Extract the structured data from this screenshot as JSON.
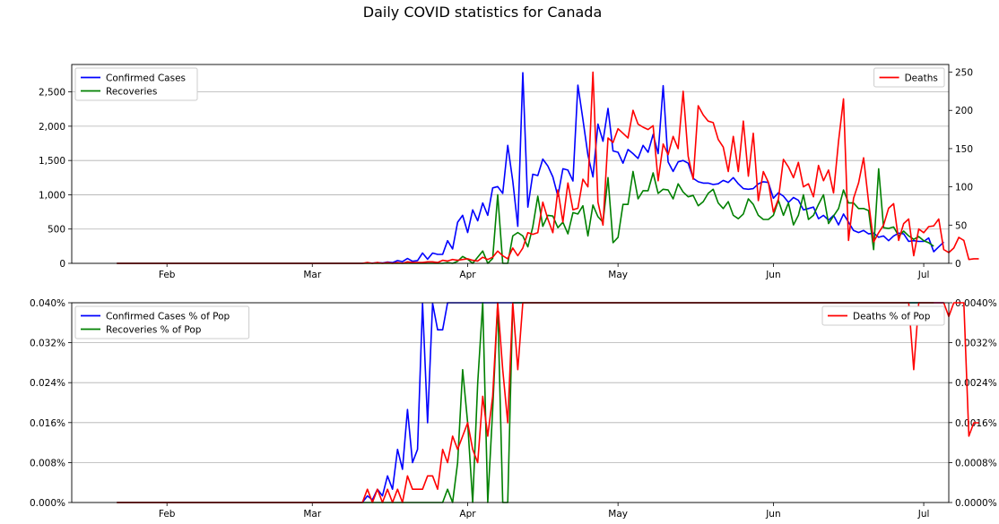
{
  "title": "Daily COVID statistics for Canada",
  "chart_data": [
    {
      "type": "line",
      "name": "daily-counts",
      "dates_start": "2020-01-22",
      "xlim": [
        "2020-01-13",
        "2020-07-06"
      ],
      "x_ticks": [
        {
          "date": "2020-02-01",
          "label": "Feb"
        },
        {
          "date": "2020-03-01",
          "label": "Mar"
        },
        {
          "date": "2020-04-01",
          "label": "Apr"
        },
        {
          "date": "2020-05-01",
          "label": "May"
        },
        {
          "date": "2020-06-01",
          "label": "Jun"
        },
        {
          "date": "2020-07-01",
          "label": "Jul"
        }
      ],
      "y_left": {
        "lim": [
          0,
          2900
        ],
        "ticks": [
          0,
          500,
          1000,
          1500,
          2000,
          2500
        ],
        "tick_labels": [
          "0",
          "500",
          "1,000",
          "1,500",
          "2,000",
          "2,500"
        ]
      },
      "y_right": {
        "lim": [
          0,
          260
        ],
        "ticks": [
          0,
          50,
          100,
          150,
          200,
          250
        ],
        "tick_labels": [
          "0",
          "50",
          "100",
          "150",
          "200",
          "250"
        ]
      },
      "grid": true,
      "legend_left": {
        "position": "upper-left",
        "entries": [
          "Confirmed Cases",
          "Recoveries"
        ]
      },
      "legend_right": {
        "position": "upper-right",
        "entries": [
          "Deaths"
        ]
      },
      "series": [
        {
          "name": "Confirmed Cases",
          "axis": "left",
          "color": "#0000ff",
          "values": [
            0,
            0,
            0,
            0,
            0,
            0,
            0,
            0,
            0,
            0,
            0,
            0,
            0,
            0,
            0,
            0,
            0,
            0,
            0,
            0,
            0,
            0,
            0,
            0,
            0,
            0,
            0,
            0,
            0,
            0,
            0,
            0,
            0,
            0,
            0,
            0,
            0,
            0,
            0,
            0,
            0,
            0,
            0,
            0,
            0,
            0,
            0,
            0,
            0,
            0,
            5,
            2,
            10,
            5,
            20,
            10,
            40,
            25,
            70,
            30,
            40,
            150,
            60,
            150,
            130,
            130,
            330,
            210,
            600,
            700,
            450,
            780,
            620,
            880,
            700,
            1100,
            1120,
            1020,
            1720,
            1200,
            540,
            2780,
            820,
            1300,
            1280,
            1520,
            1420,
            1260,
            980,
            1380,
            1360,
            1200,
            2600,
            2100,
            1580,
            1260,
            2030,
            1780,
            2260,
            1640,
            1620,
            1460,
            1660,
            1600,
            1530,
            1720,
            1620,
            1880,
            1600,
            2590,
            1480,
            1340,
            1480,
            1500,
            1460,
            1240,
            1190,
            1170,
            1170,
            1150,
            1160,
            1210,
            1180,
            1250,
            1160,
            1090,
            1080,
            1090,
            1160,
            1190,
            1180,
            950,
            1030,
            980,
            890,
            960,
            920,
            780,
            800,
            820,
            650,
            700,
            630,
            700,
            560,
            720,
            600,
            480,
            450,
            480,
            430,
            440,
            380,
            400,
            330,
            400,
            440,
            430,
            320,
            330,
            320,
            320,
            370,
            170,
            240,
            310
          ]
        },
        {
          "name": "Recoveries",
          "axis": "left",
          "color": "#008000",
          "values": [
            0,
            0,
            0,
            0,
            0,
            0,
            0,
            0,
            0,
            0,
            0,
            0,
            0,
            0,
            0,
            0,
            0,
            0,
            0,
            0,
            0,
            0,
            0,
            0,
            0,
            0,
            0,
            0,
            0,
            0,
            0,
            0,
            0,
            0,
            0,
            0,
            0,
            0,
            0,
            0,
            0,
            0,
            0,
            0,
            0,
            0,
            0,
            0,
            0,
            0,
            0,
            0,
            0,
            0,
            0,
            0,
            0,
            0,
            0,
            0,
            0,
            0,
            0,
            0,
            0,
            0,
            10,
            0,
            30,
            100,
            60,
            0,
            90,
            180,
            0,
            70,
            1000,
            0,
            0,
            400,
            450,
            400,
            240,
            530,
            980,
            540,
            700,
            690,
            520,
            600,
            430,
            740,
            720,
            840,
            400,
            850,
            680,
            600,
            1250,
            300,
            380,
            860,
            860,
            1340,
            940,
            1060,
            1060,
            1320,
            1020,
            1080,
            1070,
            940,
            1160,
            1040,
            970,
            990,
            840,
            900,
            1020,
            1080,
            880,
            800,
            900,
            700,
            650,
            720,
            940,
            860,
            700,
            640,
            640,
            700,
            920,
            700,
            880,
            560,
            700,
            1000,
            640,
            700,
            860,
            1000,
            580,
            690,
            800,
            1070,
            880,
            880,
            800,
            800,
            770,
            200,
            1380,
            520,
            510,
            530,
            400,
            470,
            400,
            350,
            390,
            330,
            300,
            250
          ]
        },
        {
          "name": "Deaths",
          "axis": "right",
          "color": "#ff0000",
          "values": [
            0,
            0,
            0,
            0,
            0,
            0,
            0,
            0,
            0,
            0,
            0,
            0,
            0,
            0,
            0,
            0,
            0,
            0,
            0,
            0,
            0,
            0,
            0,
            0,
            0,
            0,
            0,
            0,
            0,
            0,
            0,
            0,
            0,
            0,
            0,
            0,
            0,
            0,
            0,
            0,
            0,
            0,
            0,
            0,
            0,
            0,
            0,
            0,
            0,
            0,
            1,
            0,
            1,
            0,
            1,
            0,
            1,
            0,
            2,
            1,
            1,
            1,
            2,
            2,
            1,
            4,
            3,
            5,
            4,
            5,
            6,
            4,
            3,
            8,
            5,
            8,
            16,
            10,
            6,
            20,
            10,
            20,
            40,
            38,
            40,
            80,
            58,
            40,
            96,
            54,
            105,
            70,
            72,
            110,
            100,
            250,
            80,
            50,
            164,
            158,
            176,
            170,
            164,
            200,
            182,
            178,
            175,
            180,
            108,
            156,
            142,
            166,
            150,
            225,
            140,
            110,
            206,
            194,
            186,
            184,
            162,
            152,
            120,
            166,
            120,
            186,
            114,
            170,
            82,
            120,
            106,
            67,
            84,
            136,
            126,
            112,
            132,
            100,
            104,
            87,
            128,
            108,
            122,
            92,
            160,
            215,
            30,
            85,
            105,
            138,
            80,
            28,
            40,
            50,
            72,
            78,
            30,
            52,
            58,
            10,
            45,
            40,
            48,
            49,
            58,
            18,
            14,
            20,
            34,
            30,
            5,
            6,
            6
          ]
        }
      ]
    },
    {
      "type": "line",
      "name": "percent-of-population",
      "dates_start": "2020-01-22",
      "xlim": [
        "2020-01-13",
        "2020-07-06"
      ],
      "x_ticks": [
        {
          "date": "2020-02-01",
          "label": "Feb"
        },
        {
          "date": "2020-03-01",
          "label": "Mar"
        },
        {
          "date": "2020-04-01",
          "label": "Apr"
        },
        {
          "date": "2020-05-01",
          "label": "May"
        },
        {
          "date": "2020-06-01",
          "label": "Jun"
        },
        {
          "date": "2020-07-01",
          "label": "Jul"
        }
      ],
      "y_left": {
        "lim": [
          0,
          0.04
        ],
        "ticks": [
          0,
          0.008,
          0.016,
          0.024,
          0.032,
          0.04
        ],
        "tick_labels": [
          "0.000%",
          "0.008%",
          "0.016%",
          "0.024%",
          "0.032%",
          "0.040%"
        ]
      },
      "y_right": {
        "lim": [
          0,
          0.004
        ],
        "ticks": [
          0,
          0.0008,
          0.0016,
          0.0024,
          0.0032,
          0.004
        ],
        "tick_labels": [
          "0.0000%",
          "0.0008%",
          "0.0016%",
          "0.0024%",
          "0.0032%",
          "0.0040%"
        ]
      },
      "grid": true,
      "legend_left": {
        "position": "upper-left",
        "entries": [
          "Confirmed Cases % of Pop",
          "Recoveries % of Pop"
        ]
      },
      "legend_right": {
        "position": "upper-right",
        "entries": [
          "Deaths % of Pop"
        ]
      },
      "series": [
        {
          "name": "Confirmed Cases % of Pop",
          "axis": "left",
          "color": "#0000ff",
          "derived_from": "Confirmed Cases",
          "scale": 2.66e-06
        },
        {
          "name": "Recoveries % of Pop",
          "axis": "left",
          "color": "#008000",
          "derived_from": "Recoveries",
          "scale": 2.66e-06
        },
        {
          "name": "Deaths % of Pop",
          "axis": "right",
          "color": "#ff0000",
          "derived_from": "Deaths",
          "scale": 2.66e-06
        }
      ]
    }
  ]
}
